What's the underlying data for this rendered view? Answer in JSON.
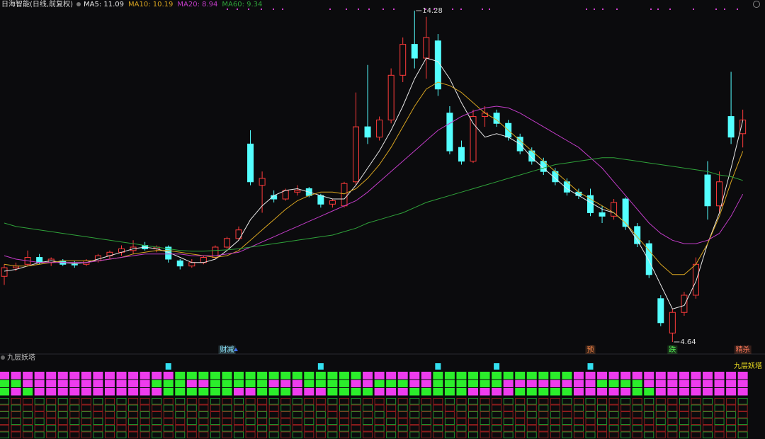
{
  "chart_data": {
    "type": "candlestick",
    "title": "日海智能(日线,前复权)",
    "ylim": [
      4.33,
      14.59
    ],
    "up_color": "#ff3b3b",
    "down_color": "#54ffff",
    "ohlc": [
      [
        6.55,
        6.9,
        6.3,
        6.8
      ],
      [
        6.8,
        6.95,
        6.7,
        6.85
      ],
      [
        6.9,
        7.3,
        6.85,
        7.1
      ],
      [
        7.1,
        7.2,
        6.9,
        6.95
      ],
      [
        6.95,
        7.1,
        6.85,
        7.05
      ],
      [
        7.0,
        7.05,
        6.85,
        6.9
      ],
      [
        6.9,
        7.0,
        6.8,
        6.88
      ],
      [
        6.9,
        7.05,
        6.85,
        7.0
      ],
      [
        7.0,
        7.2,
        6.95,
        7.15
      ],
      [
        7.15,
        7.3,
        7.05,
        7.25
      ],
      [
        7.25,
        7.45,
        7.15,
        7.35
      ],
      [
        7.3,
        7.6,
        7.2,
        7.4
      ],
      [
        7.45,
        7.55,
        7.3,
        7.35
      ],
      [
        7.35,
        7.45,
        7.25,
        7.4
      ],
      [
        7.4,
        7.45,
        6.95,
        7.05
      ],
      [
        7.0,
        7.05,
        6.75,
        6.85
      ],
      [
        6.85,
        7.05,
        6.8,
        6.95
      ],
      [
        6.95,
        7.15,
        6.9,
        7.1
      ],
      [
        7.1,
        7.45,
        7.05,
        7.4
      ],
      [
        7.4,
        7.7,
        7.35,
        7.65
      ],
      [
        7.65,
        8.0,
        7.6,
        7.9
      ],
      [
        10.4,
        10.8,
        9.2,
        9.3
      ],
      [
        9.2,
        9.6,
        8.4,
        9.4
      ],
      [
        8.9,
        9.05,
        8.7,
        8.8
      ],
      [
        8.8,
        9.1,
        8.75,
        9.05
      ],
      [
        9.0,
        9.2,
        8.9,
        9.05
      ],
      [
        9.1,
        9.15,
        8.85,
        8.9
      ],
      [
        8.9,
        8.95,
        8.55,
        8.65
      ],
      [
        8.65,
        8.8,
        8.55,
        8.75
      ],
      [
        8.6,
        9.3,
        8.55,
        9.25
      ],
      [
        9.3,
        11.9,
        9.2,
        10.9
      ],
      [
        10.9,
        12.7,
        10.4,
        10.6
      ],
      [
        10.6,
        11.2,
        10.5,
        11.1
      ],
      [
        11.1,
        12.6,
        11.0,
        12.4
      ],
      [
        12.4,
        13.5,
        12.2,
        13.3
      ],
      [
        13.3,
        14.28,
        12.6,
        12.9
      ],
      [
        12.9,
        14.1,
        12.3,
        13.5
      ],
      [
        13.4,
        13.6,
        11.8,
        12.0
      ],
      [
        11.3,
        11.5,
        10.1,
        10.2
      ],
      [
        10.3,
        10.5,
        9.8,
        9.9
      ],
      [
        9.9,
        11.4,
        9.85,
        11.2
      ],
      [
        11.2,
        11.5,
        10.9,
        11.3
      ],
      [
        11.3,
        11.4,
        10.9,
        11.0
      ],
      [
        11.0,
        11.1,
        10.5,
        10.6
      ],
      [
        10.6,
        10.7,
        10.1,
        10.2
      ],
      [
        10.2,
        10.3,
        9.8,
        9.9
      ],
      [
        9.9,
        10.0,
        9.5,
        9.6
      ],
      [
        9.6,
        9.7,
        9.2,
        9.3
      ],
      [
        9.3,
        9.4,
        8.9,
        9.0
      ],
      [
        9.0,
        9.1,
        8.8,
        8.9
      ],
      [
        8.9,
        9.1,
        8.3,
        8.4
      ],
      [
        8.4,
        8.6,
        8.1,
        8.3
      ],
      [
        8.3,
        8.8,
        8.2,
        8.7
      ],
      [
        8.8,
        8.85,
        7.9,
        8.0
      ],
      [
        8.0,
        8.1,
        7.4,
        7.5
      ],
      [
        7.5,
        7.6,
        6.5,
        6.6
      ],
      [
        5.9,
        6.0,
        5.1,
        5.2
      ],
      [
        4.9,
        5.6,
        4.64,
        5.5
      ],
      [
        5.5,
        6.1,
        5.4,
        6.0
      ],
      [
        6.0,
        7.1,
        5.9,
        6.9
      ],
      [
        9.5,
        9.9,
        8.2,
        8.6
      ],
      [
        8.6,
        9.6,
        8.4,
        9.3
      ],
      [
        11.2,
        12.5,
        10.4,
        10.6
      ],
      [
        10.7,
        11.4,
        10.3,
        11.1
      ]
    ],
    "series": [
      {
        "name": "MA5: 11.09",
        "color": "#e8e8e8",
        "values": [
          6.7,
          6.75,
          6.85,
          6.95,
          7.0,
          6.95,
          6.92,
          6.95,
          7.05,
          7.15,
          7.25,
          7.35,
          7.4,
          7.35,
          7.25,
          7.1,
          6.95,
          6.95,
          7.05,
          7.3,
          7.6,
          8.2,
          8.6,
          8.9,
          9.05,
          9.1,
          9.0,
          8.9,
          8.8,
          8.8,
          9.2,
          9.7,
          10.2,
          10.8,
          11.5,
          12.3,
          12.9,
          12.8,
          12.3,
          11.6,
          11.0,
          10.6,
          10.7,
          10.6,
          10.4,
          10.0,
          9.7,
          9.4,
          9.1,
          8.9,
          8.7,
          8.5,
          8.4,
          8.1,
          7.6,
          7.0,
          6.3,
          5.6,
          5.7,
          6.4,
          7.5,
          8.4,
          9.7,
          11.09
        ]
      },
      {
        "name": "MA10: 10.19",
        "color": "#d9a520",
        "values": [
          6.9,
          6.85,
          6.85,
          6.9,
          6.95,
          7.0,
          7.0,
          7.0,
          7.0,
          7.05,
          7.1,
          7.2,
          7.25,
          7.3,
          7.3,
          7.25,
          7.2,
          7.15,
          7.1,
          7.15,
          7.3,
          7.6,
          7.9,
          8.2,
          8.5,
          8.75,
          8.9,
          9.0,
          9.0,
          8.95,
          9.1,
          9.4,
          9.8,
          10.3,
          10.9,
          11.5,
          12.0,
          12.2,
          12.1,
          11.9,
          11.6,
          11.3,
          11.1,
          10.8,
          10.5,
          10.2,
          9.9,
          9.6,
          9.3,
          9.0,
          8.8,
          8.6,
          8.4,
          8.1,
          7.7,
          7.3,
          6.9,
          6.6,
          6.6,
          6.9,
          7.5,
          8.3,
          9.3,
          10.19
        ]
      },
      {
        "name": "MA20: 8.94",
        "color": "#c23cc8",
        "values": [
          7.15,
          7.05,
          7.0,
          6.95,
          6.95,
          6.95,
          6.95,
          6.95,
          7.0,
          7.05,
          7.1,
          7.15,
          7.2,
          7.2,
          7.2,
          7.2,
          7.15,
          7.15,
          7.15,
          7.2,
          7.25,
          7.4,
          7.55,
          7.7,
          7.85,
          8.0,
          8.15,
          8.3,
          8.45,
          8.6,
          8.75,
          9.0,
          9.3,
          9.6,
          9.9,
          10.2,
          10.5,
          10.8,
          11.0,
          11.2,
          11.35,
          11.45,
          11.5,
          11.45,
          11.3,
          11.1,
          10.9,
          10.7,
          10.5,
          10.3,
          10.0,
          9.7,
          9.3,
          8.9,
          8.5,
          8.1,
          7.8,
          7.6,
          7.5,
          7.5,
          7.6,
          7.8,
          8.3,
          8.94
        ]
      },
      {
        "name": "MA60: 9.34",
        "color": "#2fa23a",
        "values": [
          8.1,
          8.0,
          7.95,
          7.9,
          7.85,
          7.8,
          7.75,
          7.7,
          7.65,
          7.6,
          7.55,
          7.5,
          7.45,
          7.4,
          7.35,
          7.3,
          7.28,
          7.28,
          7.3,
          7.32,
          7.35,
          7.4,
          7.45,
          7.5,
          7.55,
          7.6,
          7.65,
          7.7,
          7.75,
          7.85,
          7.95,
          8.1,
          8.2,
          8.3,
          8.4,
          8.55,
          8.7,
          8.8,
          8.9,
          9.0,
          9.1,
          9.2,
          9.3,
          9.4,
          9.5,
          9.6,
          9.7,
          9.8,
          9.85,
          9.9,
          9.95,
          10.0,
          10.0,
          9.95,
          9.9,
          9.85,
          9.8,
          9.75,
          9.7,
          9.65,
          9.6,
          9.5,
          9.45,
          9.34
        ]
      }
    ],
    "price_labels": [
      14.28,
      4.64
    ],
    "signals": [
      {
        "text": "财减",
        "index": 19,
        "color": "#8fe8ff"
      },
      {
        "text": "预",
        "index": 50,
        "color": "#ff8a4a"
      },
      {
        "text": "跌",
        "index": 57,
        "color": "#55ee55"
      },
      {
        "text": "精杀",
        "index": 63,
        "color": "#ff7a5a"
      }
    ],
    "indicator": {
      "title": "九层妖塔",
      "pink": "#ee3cee",
      "green": "#2bee2b",
      "markers": [
        14,
        27,
        37,
        42,
        50
      ],
      "rows": [
        [
          1,
          1,
          1,
          1,
          1,
          1,
          1,
          1,
          1,
          1,
          1,
          1,
          1,
          1,
          1,
          0,
          0,
          0,
          0,
          0,
          0,
          0,
          0,
          0,
          0,
          0,
          0,
          0,
          0,
          0,
          0,
          1,
          1,
          1,
          1,
          1,
          1,
          0,
          0,
          0,
          0,
          0,
          0,
          0,
          0,
          0,
          0,
          0,
          0,
          1,
          1,
          1,
          1,
          1,
          1,
          1,
          1,
          1,
          1,
          1,
          1,
          1,
          1,
          1
        ],
        [
          0,
          0,
          1,
          1,
          1,
          1,
          1,
          1,
          1,
          1,
          1,
          1,
          1,
          0,
          0,
          0,
          1,
          1,
          0,
          0,
          0,
          0,
          0,
          1,
          1,
          1,
          0,
          0,
          0,
          0,
          1,
          1,
          0,
          0,
          0,
          1,
          1,
          0,
          0,
          0,
          0,
          0,
          0,
          1,
          1,
          1,
          1,
          1,
          1,
          1,
          1,
          0,
          0,
          0,
          0,
          1,
          1,
          1,
          1,
          1,
          1,
          1,
          1,
          1
        ],
        [
          0,
          1,
          0,
          1,
          1,
          1,
          1,
          1,
          1,
          1,
          1,
          1,
          1,
          1,
          0,
          0,
          0,
          0,
          0,
          0,
          1,
          1,
          0,
          0,
          0,
          1,
          1,
          1,
          0,
          0,
          0,
          0,
          1,
          1,
          1,
          0,
          0,
          0,
          0,
          0,
          1,
          1,
          1,
          1,
          0,
          0,
          0,
          0,
          0,
          1,
          1,
          1,
          1,
          1,
          0,
          0,
          1,
          1,
          1,
          1,
          1,
          1,
          1,
          1
        ]
      ]
    }
  }
}
